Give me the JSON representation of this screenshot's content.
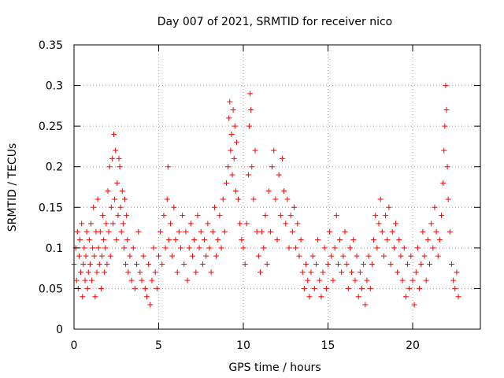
{
  "chart_data": {
    "type": "scatter",
    "title": "Day 007 of 2021, SRMTID for receiver nico",
    "xlabel": "GPS time / hours",
    "ylabel": "SRMTID / TECUs",
    "xlim": [
      0,
      24
    ],
    "ylim": [
      0,
      0.35
    ],
    "x_ticks": [
      "0",
      "5",
      "10",
      "15",
      "20"
    ],
    "y_ticks": [
      "0",
      "0.05",
      "0.1",
      "0.15",
      "0.2",
      "0.25",
      "0.3",
      "0.35"
    ],
    "grid": true,
    "marker": "+",
    "marker_color": "#ff0000",
    "series": [
      {
        "points": [
          [
            0.0,
            0.08
          ],
          [
            0.1,
            0.1
          ],
          [
            0.15,
            0.06
          ],
          [
            0.2,
            0.12
          ],
          [
            0.25,
            0.05
          ],
          [
            0.3,
            0.09
          ],
          [
            0.35,
            0.11
          ],
          [
            0.4,
            0.07
          ],
          [
            0.45,
            0.13
          ],
          [
            0.5,
            0.04
          ],
          [
            0.55,
            0.08
          ],
          [
            0.6,
            0.1
          ],
          [
            0.65,
            0.06
          ],
          [
            0.7,
            0.09
          ],
          [
            0.75,
            0.12
          ],
          [
            0.8,
            0.05
          ],
          [
            0.85,
            0.07
          ],
          [
            0.9,
            0.11
          ],
          [
            0.95,
            0.08
          ],
          [
            1.0,
            0.13
          ],
          [
            1.05,
            0.06
          ],
          [
            1.1,
            0.1
          ],
          [
            1.15,
            0.15
          ],
          [
            1.2,
            0.09
          ],
          [
            1.25,
            0.04
          ],
          [
            1.3,
            0.12
          ],
          [
            1.35,
            0.07
          ],
          [
            1.4,
            0.16
          ],
          [
            1.45,
            0.1
          ],
          [
            1.5,
            0.08
          ],
          [
            1.55,
            0.12
          ],
          [
            1.6,
            0.05
          ],
          [
            1.65,
            0.09
          ],
          [
            1.7,
            0.14
          ],
          [
            1.75,
            0.11
          ],
          [
            1.8,
            0.07
          ],
          [
            1.85,
            0.1
          ],
          [
            1.9,
            0.13
          ],
          [
            1.95,
            0.08
          ],
          [
            2.0,
            0.17
          ],
          [
            2.05,
            0.12
          ],
          [
            2.1,
            0.2
          ],
          [
            2.15,
            0.09
          ],
          [
            2.2,
            0.15
          ],
          [
            2.25,
            0.21
          ],
          [
            2.3,
            0.13
          ],
          [
            2.35,
            0.24
          ],
          [
            2.4,
            0.16
          ],
          [
            2.45,
            0.22
          ],
          [
            2.5,
            0.11
          ],
          [
            2.55,
            0.18
          ],
          [
            2.6,
            0.14
          ],
          [
            2.65,
            0.21
          ],
          [
            2.7,
            0.2
          ],
          [
            2.75,
            0.15
          ],
          [
            2.8,
            0.12
          ],
          [
            2.85,
            0.17
          ],
          [
            2.9,
            0.13
          ],
          [
            2.95,
            0.1
          ],
          [
            3.0,
            0.16
          ],
          [
            3.05,
            0.08
          ],
          [
            3.1,
            0.14
          ],
          [
            3.15,
            0.11
          ],
          [
            3.2,
            0.07
          ],
          [
            3.3,
            0.09
          ],
          [
            3.4,
            0.06
          ],
          [
            3.5,
            0.1
          ],
          [
            3.6,
            0.05
          ],
          [
            3.7,
            0.08
          ],
          [
            3.8,
            0.12
          ],
          [
            3.9,
            0.07
          ],
          [
            4.0,
            0.06
          ],
          [
            4.1,
            0.09
          ],
          [
            4.2,
            0.05
          ],
          [
            4.3,
            0.04
          ],
          [
            4.4,
            0.08
          ],
          [
            4.5,
            0.03
          ],
          [
            4.6,
            0.06
          ],
          [
            4.7,
            0.1
          ],
          [
            4.8,
            0.07
          ],
          [
            4.9,
            0.05
          ],
          [
            5.0,
            0.09
          ],
          [
            5.1,
            0.12
          ],
          [
            5.2,
            0.08
          ],
          [
            5.3,
            0.14
          ],
          [
            5.4,
            0.1
          ],
          [
            5.5,
            0.16
          ],
          [
            5.55,
            0.2
          ],
          [
            5.6,
            0.11
          ],
          [
            5.7,
            0.13
          ],
          [
            5.8,
            0.09
          ],
          [
            5.9,
            0.15
          ],
          [
            6.0,
            0.11
          ],
          [
            6.1,
            0.07
          ],
          [
            6.2,
            0.12
          ],
          [
            6.3,
            0.1
          ],
          [
            6.4,
            0.14
          ],
          [
            6.5,
            0.08
          ],
          [
            6.6,
            0.12
          ],
          [
            6.7,
            0.06
          ],
          [
            6.8,
            0.1
          ],
          [
            6.9,
            0.13
          ],
          [
            7.0,
            0.09
          ],
          [
            7.1,
            0.11
          ],
          [
            7.2,
            0.07
          ],
          [
            7.3,
            0.14
          ],
          [
            7.4,
            0.1
          ],
          [
            7.5,
            0.12
          ],
          [
            7.6,
            0.08
          ],
          [
            7.7,
            0.11
          ],
          [
            7.8,
            0.09
          ],
          [
            7.9,
            0.13
          ],
          [
            8.0,
            0.1
          ],
          [
            8.1,
            0.07
          ],
          [
            8.2,
            0.12
          ],
          [
            8.3,
            0.15
          ],
          [
            8.4,
            0.09
          ],
          [
            8.5,
            0.11
          ],
          [
            8.6,
            0.14
          ],
          [
            8.7,
            0.1
          ],
          [
            8.8,
            0.16
          ],
          [
            8.9,
            0.12
          ],
          [
            9.0,
            0.18
          ],
          [
            9.1,
            0.2
          ],
          [
            9.15,
            0.26
          ],
          [
            9.2,
            0.28
          ],
          [
            9.25,
            0.22
          ],
          [
            9.3,
            0.24
          ],
          [
            9.35,
            0.19
          ],
          [
            9.4,
            0.27
          ],
          [
            9.45,
            0.21
          ],
          [
            9.5,
            0.25
          ],
          [
            9.55,
            0.17
          ],
          [
            9.6,
            0.23
          ],
          [
            9.7,
            0.16
          ],
          [
            9.8,
            0.13
          ],
          [
            9.9,
            0.11
          ],
          [
            10.0,
            0.1
          ],
          [
            10.1,
            0.08
          ],
          [
            10.2,
            0.13
          ],
          [
            10.3,
            0.19
          ],
          [
            10.35,
            0.25
          ],
          [
            10.4,
            0.29
          ],
          [
            10.45,
            0.27
          ],
          [
            10.5,
            0.2
          ],
          [
            10.6,
            0.16
          ],
          [
            10.7,
            0.22
          ],
          [
            10.8,
            0.12
          ],
          [
            10.9,
            0.09
          ],
          [
            11.0,
            0.07
          ],
          [
            11.1,
            0.12
          ],
          [
            11.2,
            0.1
          ],
          [
            11.3,
            0.14
          ],
          [
            11.4,
            0.08
          ],
          [
            11.5,
            0.17
          ],
          [
            11.6,
            0.12
          ],
          [
            11.7,
            0.2
          ],
          [
            11.8,
            0.22
          ],
          [
            11.9,
            0.16
          ],
          [
            12.0,
            0.11
          ],
          [
            12.1,
            0.19
          ],
          [
            12.2,
            0.14
          ],
          [
            12.3,
            0.21
          ],
          [
            12.4,
            0.17
          ],
          [
            12.5,
            0.13
          ],
          [
            12.6,
            0.16
          ],
          [
            12.7,
            0.1
          ],
          [
            12.8,
            0.14
          ],
          [
            12.9,
            0.12
          ],
          [
            13.0,
            0.15
          ],
          [
            13.1,
            0.1
          ],
          [
            13.2,
            0.13
          ],
          [
            13.3,
            0.09
          ],
          [
            13.4,
            0.11
          ],
          [
            13.5,
            0.07
          ],
          [
            13.6,
            0.05
          ],
          [
            13.7,
            0.08
          ],
          [
            13.8,
            0.06
          ],
          [
            13.9,
            0.04
          ],
          [
            14.0,
            0.07
          ],
          [
            14.1,
            0.09
          ],
          [
            14.2,
            0.05
          ],
          [
            14.3,
            0.08
          ],
          [
            14.4,
            0.11
          ],
          [
            14.5,
            0.06
          ],
          [
            14.6,
            0.04
          ],
          [
            14.7,
            0.07
          ],
          [
            14.8,
            0.1
          ],
          [
            14.9,
            0.05
          ],
          [
            15.0,
            0.08
          ],
          [
            15.1,
            0.12
          ],
          [
            15.2,
            0.09
          ],
          [
            15.3,
            0.06
          ],
          [
            15.4,
            0.1
          ],
          [
            15.5,
            0.14
          ],
          [
            15.6,
            0.08
          ],
          [
            15.7,
            0.11
          ],
          [
            15.8,
            0.07
          ],
          [
            15.9,
            0.09
          ],
          [
            16.0,
            0.12
          ],
          [
            16.1,
            0.08
          ],
          [
            16.2,
            0.05
          ],
          [
            16.3,
            0.1
          ],
          [
            16.4,
            0.07
          ],
          [
            16.5,
            0.11
          ],
          [
            16.6,
            0.06
          ],
          [
            16.7,
            0.09
          ],
          [
            16.8,
            0.04
          ],
          [
            16.9,
            0.07
          ],
          [
            17.0,
            0.05
          ],
          [
            17.1,
            0.08
          ],
          [
            17.2,
            0.03
          ],
          [
            17.3,
            0.06
          ],
          [
            17.4,
            0.09
          ],
          [
            17.5,
            0.05
          ],
          [
            17.6,
            0.08
          ],
          [
            17.7,
            0.11
          ],
          [
            17.8,
            0.14
          ],
          [
            17.9,
            0.1
          ],
          [
            18.0,
            0.13
          ],
          [
            18.1,
            0.16
          ],
          [
            18.2,
            0.12
          ],
          [
            18.3,
            0.09
          ],
          [
            18.4,
            0.14
          ],
          [
            18.5,
            0.11
          ],
          [
            18.6,
            0.15
          ],
          [
            18.7,
            0.08
          ],
          [
            18.8,
            0.12
          ],
          [
            18.9,
            0.1
          ],
          [
            19.0,
            0.13
          ],
          [
            19.1,
            0.07
          ],
          [
            19.2,
            0.11
          ],
          [
            19.3,
            0.09
          ],
          [
            19.4,
            0.06
          ],
          [
            19.5,
            0.1
          ],
          [
            19.6,
            0.04
          ],
          [
            19.7,
            0.08
          ],
          [
            19.8,
            0.05
          ],
          [
            19.9,
            0.09
          ],
          [
            20.0,
            0.06
          ],
          [
            20.1,
            0.03
          ],
          [
            20.2,
            0.07
          ],
          [
            20.3,
            0.1
          ],
          [
            20.4,
            0.05
          ],
          [
            20.5,
            0.08
          ],
          [
            20.6,
            0.12
          ],
          [
            20.7,
            0.09
          ],
          [
            20.8,
            0.06
          ],
          [
            20.9,
            0.11
          ],
          [
            21.0,
            0.08
          ],
          [
            21.1,
            0.13
          ],
          [
            21.2,
            0.1
          ],
          [
            21.3,
            0.15
          ],
          [
            21.4,
            0.12
          ],
          [
            21.5,
            0.09
          ],
          [
            21.6,
            0.11
          ],
          [
            21.7,
            0.14
          ],
          [
            21.8,
            0.18
          ],
          [
            21.85,
            0.22
          ],
          [
            21.9,
            0.25
          ],
          [
            21.95,
            0.3
          ],
          [
            22.0,
            0.27
          ],
          [
            22.05,
            0.2
          ],
          [
            22.1,
            0.16
          ],
          [
            22.2,
            0.12
          ],
          [
            22.3,
            0.08
          ],
          [
            22.4,
            0.06
          ],
          [
            22.5,
            0.05
          ],
          [
            22.6,
            0.07
          ],
          [
            22.7,
            0.04
          ]
        ]
      }
    ]
  }
}
